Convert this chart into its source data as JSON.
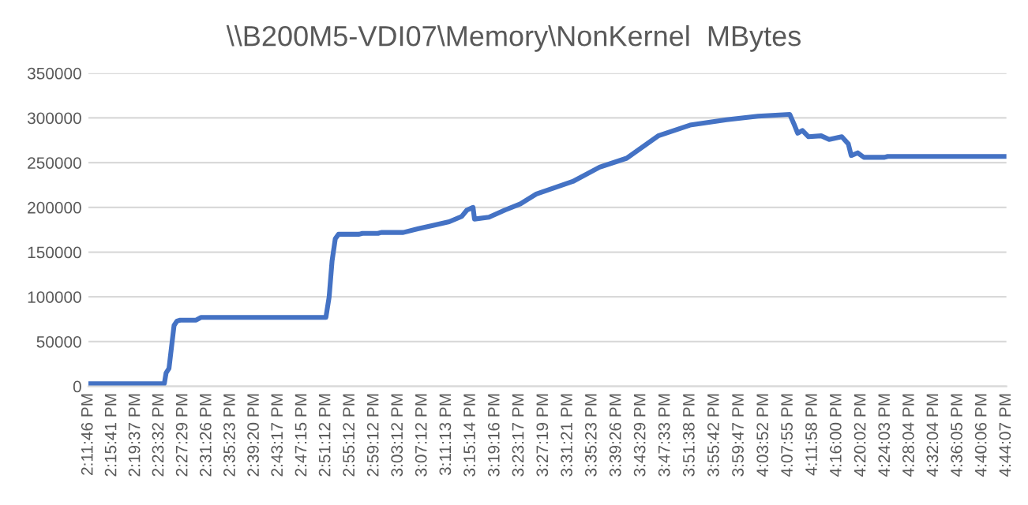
{
  "chart_data": {
    "type": "line",
    "title": "\\\\B200M5-VDI07\\Memory\\NonKernel  MBytes",
    "xlim": [
      14.1961,
      16.7353
    ],
    "ylim": [
      0,
      350000
    ],
    "yticks": [
      0,
      50000,
      100000,
      150000,
      200000,
      250000,
      300000,
      350000
    ],
    "xticks": [
      {
        "value": 14.1961,
        "label": "2:11:46 PM"
      },
      {
        "value": 14.2614,
        "label": "2:15:41 PM"
      },
      {
        "value": 14.3269,
        "label": "2:19:37 PM"
      },
      {
        "value": 14.3922,
        "label": "2:23:32 PM"
      },
      {
        "value": 14.4581,
        "label": "2:27:29 PM"
      },
      {
        "value": 14.5239,
        "label": "2:31:26 PM"
      },
      {
        "value": 14.5897,
        "label": "2:35:23 PM"
      },
      {
        "value": 14.6556,
        "label": "2:39:20 PM"
      },
      {
        "value": 14.7214,
        "label": "2:43:17 PM"
      },
      {
        "value": 14.7875,
        "label": "2:47:15 PM"
      },
      {
        "value": 14.8533,
        "label": "2:51:12 PM"
      },
      {
        "value": 14.92,
        "label": "2:55:12 PM"
      },
      {
        "value": 14.9867,
        "label": "2:59:12 PM"
      },
      {
        "value": 15.0533,
        "label": "3:03:12 PM"
      },
      {
        "value": 15.12,
        "label": "3:07:12 PM"
      },
      {
        "value": 15.1869,
        "label": "3:11:13 PM"
      },
      {
        "value": 15.2539,
        "label": "3:15:14 PM"
      },
      {
        "value": 15.3211,
        "label": "3:19:16 PM"
      },
      {
        "value": 15.3881,
        "label": "3:23:17 PM"
      },
      {
        "value": 15.4553,
        "label": "3:27:19 PM"
      },
      {
        "value": 15.5225,
        "label": "3:31:21 PM"
      },
      {
        "value": 15.5897,
        "label": "3:35:23 PM"
      },
      {
        "value": 15.6572,
        "label": "3:39:26 PM"
      },
      {
        "value": 15.7247,
        "label": "3:43:29 PM"
      },
      {
        "value": 15.7925,
        "label": "3:47:33 PM"
      },
      {
        "value": 15.8606,
        "label": "3:51:38 PM"
      },
      {
        "value": 15.9283,
        "label": "3:55:42 PM"
      },
      {
        "value": 15.9964,
        "label": "3:59:47 PM"
      },
      {
        "value": 16.0644,
        "label": "4:03:52 PM"
      },
      {
        "value": 16.1319,
        "label": "4:07:55 PM"
      },
      {
        "value": 16.1994,
        "label": "4:11:58 PM"
      },
      {
        "value": 16.2667,
        "label": "4:16:00 PM"
      },
      {
        "value": 16.3339,
        "label": "4:20:02 PM"
      },
      {
        "value": 16.4008,
        "label": "4:24:03 PM"
      },
      {
        "value": 16.4678,
        "label": "4:28:04 PM"
      },
      {
        "value": 16.5344,
        "label": "4:32:04 PM"
      },
      {
        "value": 16.6014,
        "label": "4:36:05 PM"
      },
      {
        "value": 16.6683,
        "label": "4:40:06 PM"
      },
      {
        "value": 16.7353,
        "label": "4:44:07 PM"
      }
    ],
    "grid": "y",
    "legend": false,
    "marker": "none",
    "line_style": "solid",
    "series": [
      {
        "color": "#4472c4",
        "x": [
          14.1961,
          14.406,
          14.411,
          14.419,
          14.433,
          14.441,
          14.45,
          14.494,
          14.507,
          14.853,
          14.862,
          14.87,
          14.879,
          14.888,
          14.945,
          14.954,
          14.997,
          15.006,
          15.067,
          15.107,
          15.151,
          15.194,
          15.229,
          15.243,
          15.26,
          15.264,
          15.304,
          15.348,
          15.391,
          15.435,
          15.536,
          15.61,
          15.685,
          15.772,
          15.86,
          15.961,
          16.048,
          16.136,
          16.149,
          16.158,
          16.171,
          16.188,
          16.223,
          16.245,
          16.28,
          16.298,
          16.306,
          16.324,
          16.341,
          16.398,
          16.407,
          16.735
        ],
        "values": [
          3000,
          3000,
          15000,
          20000,
          68000,
          73000,
          74000,
          74000,
          77000,
          77000,
          100000,
          140000,
          165000,
          170000,
          170000,
          171000,
          171000,
          172000,
          172000,
          176000,
          180000,
          184000,
          190000,
          197000,
          200000,
          187000,
          189000,
          197000,
          204000,
          215000,
          229000,
          245000,
          255000,
          280000,
          292000,
          298000,
          302000,
          304000,
          292000,
          283000,
          286000,
          279000,
          280000,
          276000,
          279000,
          271000,
          258000,
          261000,
          256000,
          256000,
          257000,
          257000
        ]
      }
    ]
  }
}
